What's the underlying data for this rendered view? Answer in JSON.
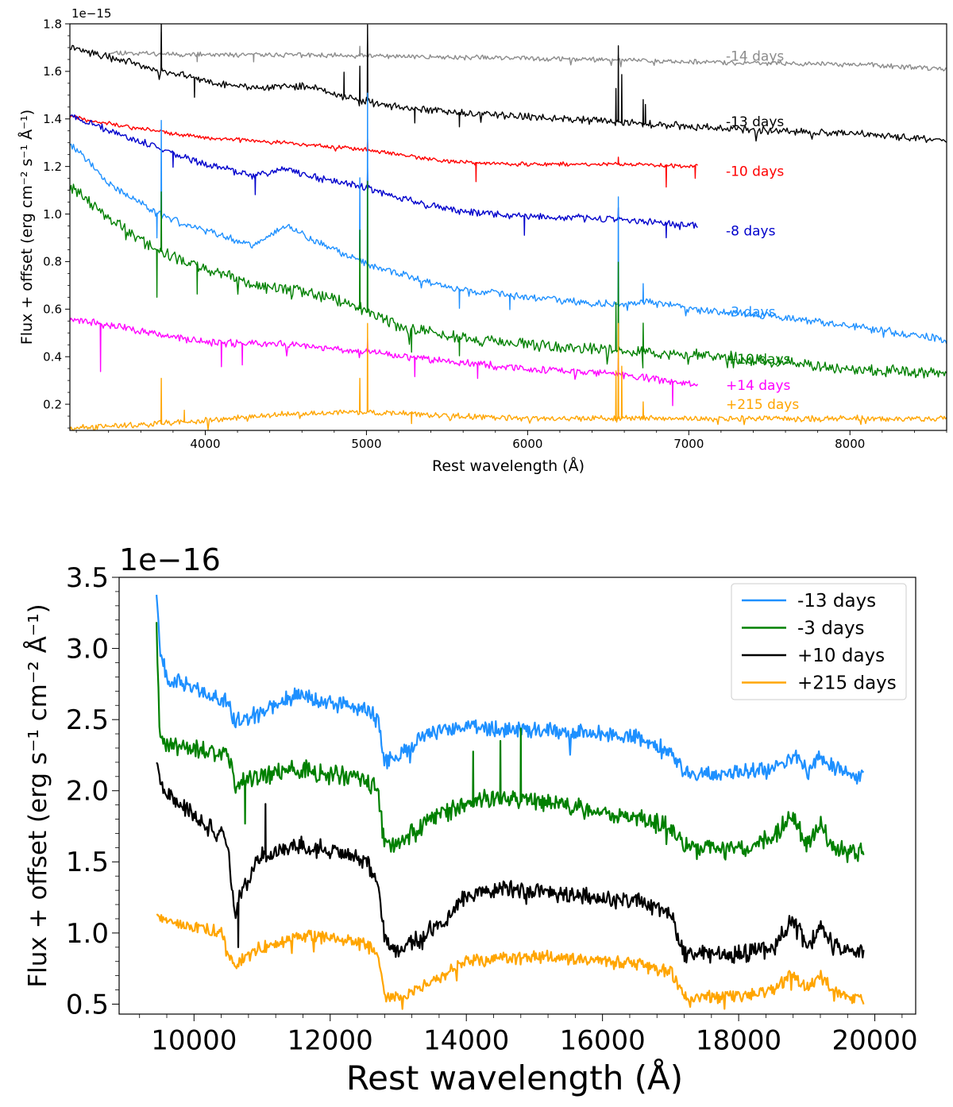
{
  "chart_data": [
    {
      "type": "line",
      "title": "",
      "xlabel": "Rest wavelength (Å)",
      "ylabel": "Flux + offset (erg cm⁻² s⁻¹ Å⁻¹)",
      "scale_label": "1e−15",
      "xlim": [
        3160,
        8600
      ],
      "ylim": [
        0.09,
        1.8
      ],
      "xticks": [
        4000,
        5000,
        6000,
        7000,
        8000
      ],
      "xtick_labels": [
        "4000",
        "5000",
        "6000",
        "7000",
        "8000"
      ],
      "yticks": [
        0.2,
        0.4,
        0.6,
        0.8,
        1.0,
        1.2,
        1.4,
        1.6,
        1.8
      ],
      "ytick_labels": [
        "0.2",
        "0.4",
        "0.6",
        "0.8",
        "1.0",
        "1.2",
        "1.4",
        "1.6",
        "1.8"
      ],
      "grid": false,
      "legend": "inline labels at right end of each spectrum",
      "series": [
        {
          "name": "-14 days",
          "color": "#8c8c8c",
          "noise": 0.008,
          "seed": 11,
          "label_pos": [
            7230,
            1.665
          ],
          "x": [
            3400,
            3700,
            4000,
            4500,
            5000,
            5500,
            6000,
            6500,
            7000,
            7500,
            8000,
            8600
          ],
          "y": [
            1.68,
            1.675,
            1.67,
            1.67,
            1.665,
            1.66,
            1.655,
            1.65,
            1.64,
            1.635,
            1.63,
            1.61
          ],
          "spikes": [
            [
              3727,
              0.09
            ],
            [
              4959,
              0.04
            ],
            [
              5007,
              0.09
            ],
            [
              6563,
              0.02
            ],
            [
              4300,
              -0.03
            ],
            [
              3950,
              -0.03
            ]
          ]
        },
        {
          "name": "-13 days",
          "color": "#000000",
          "noise": 0.012,
          "seed": 22,
          "label_pos": [
            7230,
            1.39
          ],
          "x": [
            3160,
            3400,
            3700,
            4000,
            4300,
            4600,
            4900,
            5200,
            5500,
            6000,
            6500,
            7000,
            7500,
            8000,
            8600
          ],
          "y": [
            1.7,
            1.66,
            1.61,
            1.56,
            1.53,
            1.54,
            1.49,
            1.45,
            1.43,
            1.41,
            1.39,
            1.37,
            1.35,
            1.34,
            1.31
          ],
          "spikes": [
            [
              3727,
              0.2
            ],
            [
              4861,
              0.1
            ],
            [
              4959,
              0.14
            ],
            [
              5007,
              0.32
            ],
            [
              6548,
              0.14
            ],
            [
              6563,
              0.32
            ],
            [
              6584,
              0.2
            ],
            [
              6717,
              0.1
            ],
            [
              6731,
              0.08
            ],
            [
              3933,
              -0.08
            ],
            [
              5300,
              -0.06
            ],
            [
              5577,
              -0.06
            ]
          ]
        },
        {
          "name": "-10 days",
          "color": "#ff0000",
          "noise": 0.007,
          "seed": 33,
          "label_pos": [
            7230,
            1.18
          ],
          "x": [
            3160,
            3500,
            4000,
            4500,
            5000,
            5500,
            6000,
            6500,
            7060
          ],
          "y": [
            1.41,
            1.37,
            1.32,
            1.3,
            1.27,
            1.22,
            1.21,
            1.21,
            1.2
          ],
          "spikes": [
            [
              5007,
              0.05
            ],
            [
              6563,
              0.03
            ],
            [
              5680,
              -0.08
            ],
            [
              6860,
              -0.09
            ],
            [
              7040,
              -0.05
            ]
          ]
        },
        {
          "name": "-8 days",
          "color": "#0000cc",
          "noise": 0.012,
          "seed": 44,
          "label_pos": [
            7230,
            0.93
          ],
          "x": [
            3160,
            3400,
            3700,
            4000,
            4300,
            4500,
            4700,
            5000,
            5300,
            5600,
            6000,
            6500,
            7060
          ],
          "y": [
            1.42,
            1.35,
            1.28,
            1.21,
            1.16,
            1.19,
            1.15,
            1.11,
            1.05,
            1.01,
            0.99,
            0.98,
            0.95
          ],
          "spikes": [
            [
              5007,
              0.09
            ],
            [
              6563,
              0.05
            ],
            [
              4310,
              -0.08
            ],
            [
              5980,
              -0.08
            ],
            [
              6860,
              -0.06
            ],
            [
              3800,
              -0.06
            ]
          ]
        },
        {
          "name": "-3 days",
          "color": "#1e90ff",
          "noise": 0.012,
          "seed": 55,
          "label_pos": [
            7230,
            0.59
          ],
          "x": [
            3160,
            3400,
            3700,
            4000,
            4300,
            4500,
            4700,
            5000,
            5300,
            5600,
            6000,
            6500,
            6800,
            7000,
            7500,
            8000,
            8600
          ],
          "y": [
            1.3,
            1.13,
            1.0,
            0.93,
            0.87,
            0.95,
            0.88,
            0.79,
            0.73,
            0.68,
            0.65,
            0.62,
            0.63,
            0.6,
            0.57,
            0.53,
            0.47
          ],
          "spikes": [
            [
              3727,
              0.4
            ],
            [
              5007,
              0.72
            ],
            [
              4959,
              0.35
            ],
            [
              6563,
              0.45
            ],
            [
              6717,
              0.08
            ],
            [
              3700,
              -0.1
            ],
            [
              5577,
              -0.08
            ],
            [
              5890,
              -0.06
            ]
          ]
        },
        {
          "name": "+10 days",
          "color": "#008000",
          "noise": 0.02,
          "seed": 66,
          "label_pos": [
            7230,
            0.39
          ],
          "x": [
            3160,
            3400,
            3700,
            4000,
            4300,
            4600,
            4900,
            5200,
            5500,
            6000,
            6500,
            7000,
            7500,
            8000,
            8600
          ],
          "y": [
            1.12,
            0.98,
            0.85,
            0.77,
            0.7,
            0.68,
            0.62,
            0.53,
            0.49,
            0.45,
            0.43,
            0.41,
            0.38,
            0.35,
            0.33
          ],
          "spikes": [
            [
              3727,
              0.25
            ],
            [
              4959,
              0.33
            ],
            [
              5007,
              0.55
            ],
            [
              6563,
              0.37
            ],
            [
              6548,
              0.2
            ],
            [
              6717,
              0.12
            ],
            [
              3700,
              -0.2
            ],
            [
              3950,
              -0.12
            ],
            [
              5280,
              -0.1
            ],
            [
              5577,
              -0.08
            ]
          ]
        },
        {
          "name": "+14 days",
          "color": "#ff00ff",
          "noise": 0.012,
          "seed": 77,
          "label_pos": [
            7230,
            0.28
          ],
          "x": [
            3160,
            3500,
            4000,
            4500,
            5000,
            5500,
            6000,
            6500,
            7060
          ],
          "y": [
            0.56,
            0.52,
            0.46,
            0.45,
            0.42,
            0.38,
            0.35,
            0.33,
            0.28
          ],
          "spikes": [
            [
              5007,
              0.06
            ],
            [
              6563,
              0.07
            ],
            [
              3350,
              -0.2
            ],
            [
              4100,
              -0.1
            ],
            [
              4230,
              -0.09
            ],
            [
              5300,
              -0.08
            ],
            [
              5690,
              -0.06
            ],
            [
              6900,
              -0.1
            ]
          ]
        },
        {
          "name": "+215 days",
          "color": "#ffa500",
          "noise": 0.01,
          "seed": 88,
          "label_pos": [
            7230,
            0.2
          ],
          "x": [
            3160,
            3500,
            4000,
            4500,
            5000,
            5500,
            6000,
            6500,
            7000,
            7500,
            8000,
            8600
          ],
          "y": [
            0.1,
            0.11,
            0.13,
            0.16,
            0.17,
            0.15,
            0.14,
            0.14,
            0.14,
            0.14,
            0.14,
            0.14
          ],
          "spikes": [
            [
              3727,
              0.19
            ],
            [
              4959,
              0.14
            ],
            [
              5007,
              0.37
            ],
            [
              6548,
              0.2
            ],
            [
              6563,
              0.4
            ],
            [
              6584,
              0.22
            ],
            [
              6717,
              0.07
            ],
            [
              3870,
              0.05
            ],
            [
              5280,
              -0.04
            ]
          ]
        }
      ]
    },
    {
      "type": "line",
      "title": "",
      "xlabel": "Rest wavelength (Å)",
      "ylabel": "Flux + offset (erg s⁻¹ cm⁻² Å⁻¹)",
      "scale_label": "1e−16",
      "xlim": [
        8900,
        20600
      ],
      "ylim": [
        0.43,
        3.5
      ],
      "xticks": [
        10000,
        12000,
        14000,
        16000,
        18000,
        20000
      ],
      "xtick_labels": [
        "10000",
        "12000",
        "14000",
        "16000",
        "18000",
        "20000"
      ],
      "yticks": [
        0.5,
        1.0,
        1.5,
        2.0,
        2.5,
        3.0,
        3.5
      ],
      "ytick_labels": [
        "0.5",
        "1.0",
        "1.5",
        "2.0",
        "2.5",
        "3.0",
        "3.5"
      ],
      "grid": false,
      "legend": "top-right",
      "series": [
        {
          "name": "-13 days",
          "color": "#1e90ff",
          "noise": 0.045,
          "seed": 101,
          "x": [
            9450,
            9500,
            9600,
            10000,
            10500,
            10600,
            11000,
            11500,
            12000,
            12500,
            12700,
            12800,
            13000,
            13500,
            14000,
            15000,
            16000,
            16500,
            17000,
            17200,
            17500,
            18000,
            18500,
            18900,
            19000,
            19200,
            19300,
            19500,
            19850
          ],
          "y": [
            3.4,
            3.0,
            2.8,
            2.72,
            2.62,
            2.48,
            2.55,
            2.68,
            2.62,
            2.58,
            2.5,
            2.2,
            2.25,
            2.42,
            2.45,
            2.43,
            2.4,
            2.38,
            2.28,
            2.12,
            2.12,
            2.13,
            2.15,
            2.25,
            2.12,
            2.25,
            2.2,
            2.15,
            2.08
          ],
          "spikes": [
            [
              19850,
              0.2
            ]
          ]
        },
        {
          "name": "-3 days",
          "color": "#008000",
          "noise": 0.055,
          "seed": 202,
          "x": [
            9450,
            9500,
            9700,
            10000,
            10500,
            10600,
            11000,
            11500,
            12000,
            12500,
            12700,
            12800,
            13000,
            13500,
            14000,
            14500,
            15000,
            16000,
            16500,
            17000,
            17200,
            17500,
            18000,
            18500,
            18800,
            19000,
            19200,
            19400,
            19850
          ],
          "y": [
            3.2,
            2.35,
            2.32,
            2.3,
            2.25,
            2.05,
            2.1,
            2.15,
            2.12,
            2.08,
            2.0,
            1.62,
            1.62,
            1.8,
            1.92,
            1.95,
            1.93,
            1.85,
            1.82,
            1.75,
            1.6,
            1.6,
            1.6,
            1.65,
            1.85,
            1.62,
            1.75,
            1.6,
            1.55
          ],
          "spikes": [
            [
              14100,
              0.35
            ],
            [
              14500,
              0.4
            ],
            [
              14800,
              0.5
            ],
            [
              10750,
              -0.3
            ]
          ]
        },
        {
          "name": "+10 days",
          "color": "#000000",
          "noise": 0.05,
          "seed": 303,
          "x": [
            9450,
            9500,
            9800,
            10200,
            10500,
            10600,
            10700,
            11000,
            11500,
            12000,
            12500,
            12700,
            12800,
            13000,
            13300,
            13700,
            14000,
            14500,
            15000,
            16000,
            16500,
            17000,
            17200,
            17500,
            18000,
            18500,
            18800,
            19000,
            19200,
            19400,
            19850
          ],
          "y": [
            2.2,
            2.05,
            1.9,
            1.75,
            1.65,
            1.1,
            1.3,
            1.55,
            1.62,
            1.58,
            1.52,
            1.35,
            0.95,
            0.88,
            0.95,
            1.1,
            1.25,
            1.32,
            1.3,
            1.25,
            1.22,
            1.15,
            0.85,
            0.85,
            0.85,
            0.88,
            1.1,
            0.9,
            1.05,
            0.9,
            0.85
          ],
          "spikes": [
            [
              11050,
              0.35
            ],
            [
              10650,
              -0.3
            ]
          ]
        },
        {
          "name": "+215 days",
          "color": "#ffa500",
          "noise": 0.035,
          "seed": 404,
          "x": [
            9450,
            9600,
            10000,
            10400,
            10600,
            10800,
            11000,
            11500,
            12000,
            12500,
            12700,
            12800,
            13000,
            13500,
            14000,
            15000,
            16000,
            16500,
            17000,
            17200,
            17500,
            18000,
            18500,
            18800,
            19000,
            19200,
            19400,
            19850
          ],
          "y": [
            1.12,
            1.08,
            1.05,
            1.0,
            0.75,
            0.85,
            0.9,
            0.97,
            0.98,
            0.92,
            0.85,
            0.55,
            0.55,
            0.65,
            0.8,
            0.84,
            0.8,
            0.78,
            0.73,
            0.55,
            0.55,
            0.55,
            0.6,
            0.72,
            0.6,
            0.7,
            0.6,
            0.52
          ],
          "spikes": []
        }
      ]
    }
  ]
}
